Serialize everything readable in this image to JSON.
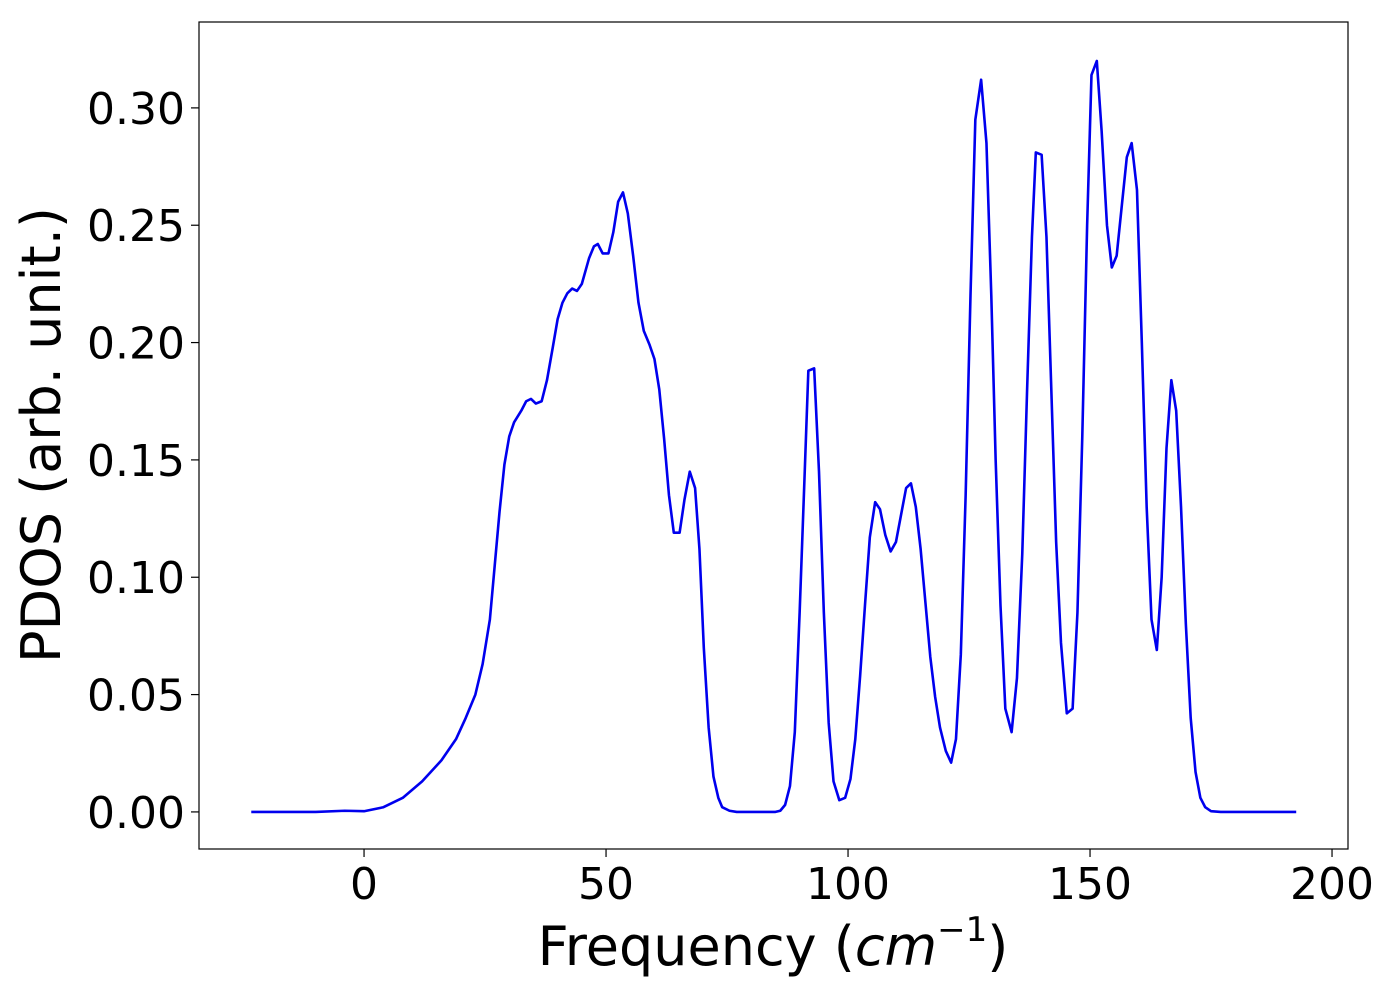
{
  "chart_data": {
    "type": "line",
    "xlabel_parts": [
      "Frequency (",
      "cm",
      "−1",
      ")"
    ],
    "ylabel": "PDOS (arb. unit.)",
    "color": "#0000ee",
    "xlim": [
      -34.1,
      203.3
    ],
    "ylim": [
      -0.0158,
      0.3366
    ],
    "xticks": [
      0,
      50,
      100,
      150,
      200
    ],
    "yticks": [
      {
        "value": 0,
        "label": "0.00"
      },
      {
        "value": 0.05,
        "label": "0.05"
      },
      {
        "value": 0.1,
        "label": "0.10"
      },
      {
        "value": 0.15,
        "label": "0.15"
      },
      {
        "value": 0.2,
        "label": "0.20"
      },
      {
        "value": 0.25,
        "label": "0.25"
      },
      {
        "value": 0.3,
        "label": "0.30"
      }
    ],
    "x": [
      -23.3,
      -10,
      -4,
      0,
      4,
      8,
      12,
      16,
      19,
      21,
      23,
      24.5,
      26,
      27,
      28,
      29,
      30,
      31,
      32.5,
      33.5,
      34.5,
      35.5,
      36.7,
      37.8,
      39,
      40,
      41,
      42,
      43,
      44,
      45,
      46.5,
      47.5,
      48.3,
      49.3,
      50.5,
      51.5,
      52.5,
      53.5,
      54.5,
      55.6,
      56.7,
      57.8,
      59,
      60,
      61,
      62,
      63,
      64,
      65.2,
      66.2,
      67.3,
      68.4,
      69.3,
      70.2,
      71.2,
      72.2,
      73.2,
      74,
      75.5,
      77,
      85,
      86,
      87,
      88,
      89,
      90,
      91,
      91.8,
      93,
      94,
      95,
      96,
      97,
      98.2,
      99.4,
      100.5,
      101.5,
      102.5,
      103.5,
      104.5,
      105.6,
      106.6,
      107.7,
      108.8,
      109.9,
      110.9,
      112,
      113,
      114,
      115,
      116,
      117,
      118,
      119,
      120.2,
      121.3,
      122.3,
      123.3,
      124.3,
      125.3,
      126.3,
      127.5,
      128.6,
      129.6,
      130.5,
      131.5,
      132.5,
      133.8,
      134.9,
      136,
      137,
      138,
      138.8,
      140,
      141,
      142,
      143,
      144,
      145.2,
      146.4,
      147.4,
      148.4,
      149.4,
      150.3,
      151.4,
      152.4,
      153.5,
      154.5,
      155.5,
      156.5,
      157.6,
      158.6,
      159.7,
      160.7,
      161.7,
      162.7,
      163.8,
      164.8,
      165.8,
      166.8,
      167.8,
      168.8,
      169.8,
      170.8,
      171.8,
      172.8,
      173.8,
      175,
      177,
      192.6
    ],
    "values": [
      0,
      0,
      0.0005,
      0.0003,
      0.002,
      0.006,
      0.013,
      0.022,
      0.031,
      0.04,
      0.05,
      0.063,
      0.082,
      0.105,
      0.128,
      0.148,
      0.16,
      0.166,
      0.171,
      0.175,
      0.176,
      0.174,
      0.175,
      0.184,
      0.198,
      0.21,
      0.217,
      0.221,
      0.223,
      0.222,
      0.225,
      0.236,
      0.241,
      0.242,
      0.238,
      0.238,
      0.247,
      0.26,
      0.264,
      0.255,
      0.237,
      0.217,
      0.205,
      0.199,
      0.193,
      0.18,
      0.159,
      0.135,
      0.119,
      0.119,
      0.133,
      0.145,
      0.138,
      0.112,
      0.07,
      0.036,
      0.015,
      0.006,
      0.002,
      0.0005,
      0,
      0,
      0.0005,
      0.003,
      0.011,
      0.034,
      0.085,
      0.142,
      0.188,
      0.189,
      0.145,
      0.085,
      0.038,
      0.013,
      0.005,
      0.006,
      0.014,
      0.031,
      0.058,
      0.088,
      0.117,
      0.132,
      0.129,
      0.118,
      0.111,
      0.115,
      0.126,
      0.138,
      0.14,
      0.13,
      0.112,
      0.089,
      0.066,
      0.049,
      0.036,
      0.026,
      0.021,
      0.031,
      0.067,
      0.135,
      0.22,
      0.295,
      0.312,
      0.285,
      0.22,
      0.15,
      0.088,
      0.044,
      0.034,
      0.057,
      0.11,
      0.18,
      0.245,
      0.281,
      0.28,
      0.245,
      0.18,
      0.115,
      0.072,
      0.042,
      0.044,
      0.085,
      0.16,
      0.25,
      0.314,
      0.32,
      0.29,
      0.25,
      0.232,
      0.237,
      0.257,
      0.279,
      0.285,
      0.265,
      0.2,
      0.13,
      0.082,
      0.069,
      0.1,
      0.155,
      0.184,
      0.171,
      0.13,
      0.08,
      0.04,
      0.017,
      0.006,
      0.002,
      0.0003,
      0,
      0
    ]
  }
}
